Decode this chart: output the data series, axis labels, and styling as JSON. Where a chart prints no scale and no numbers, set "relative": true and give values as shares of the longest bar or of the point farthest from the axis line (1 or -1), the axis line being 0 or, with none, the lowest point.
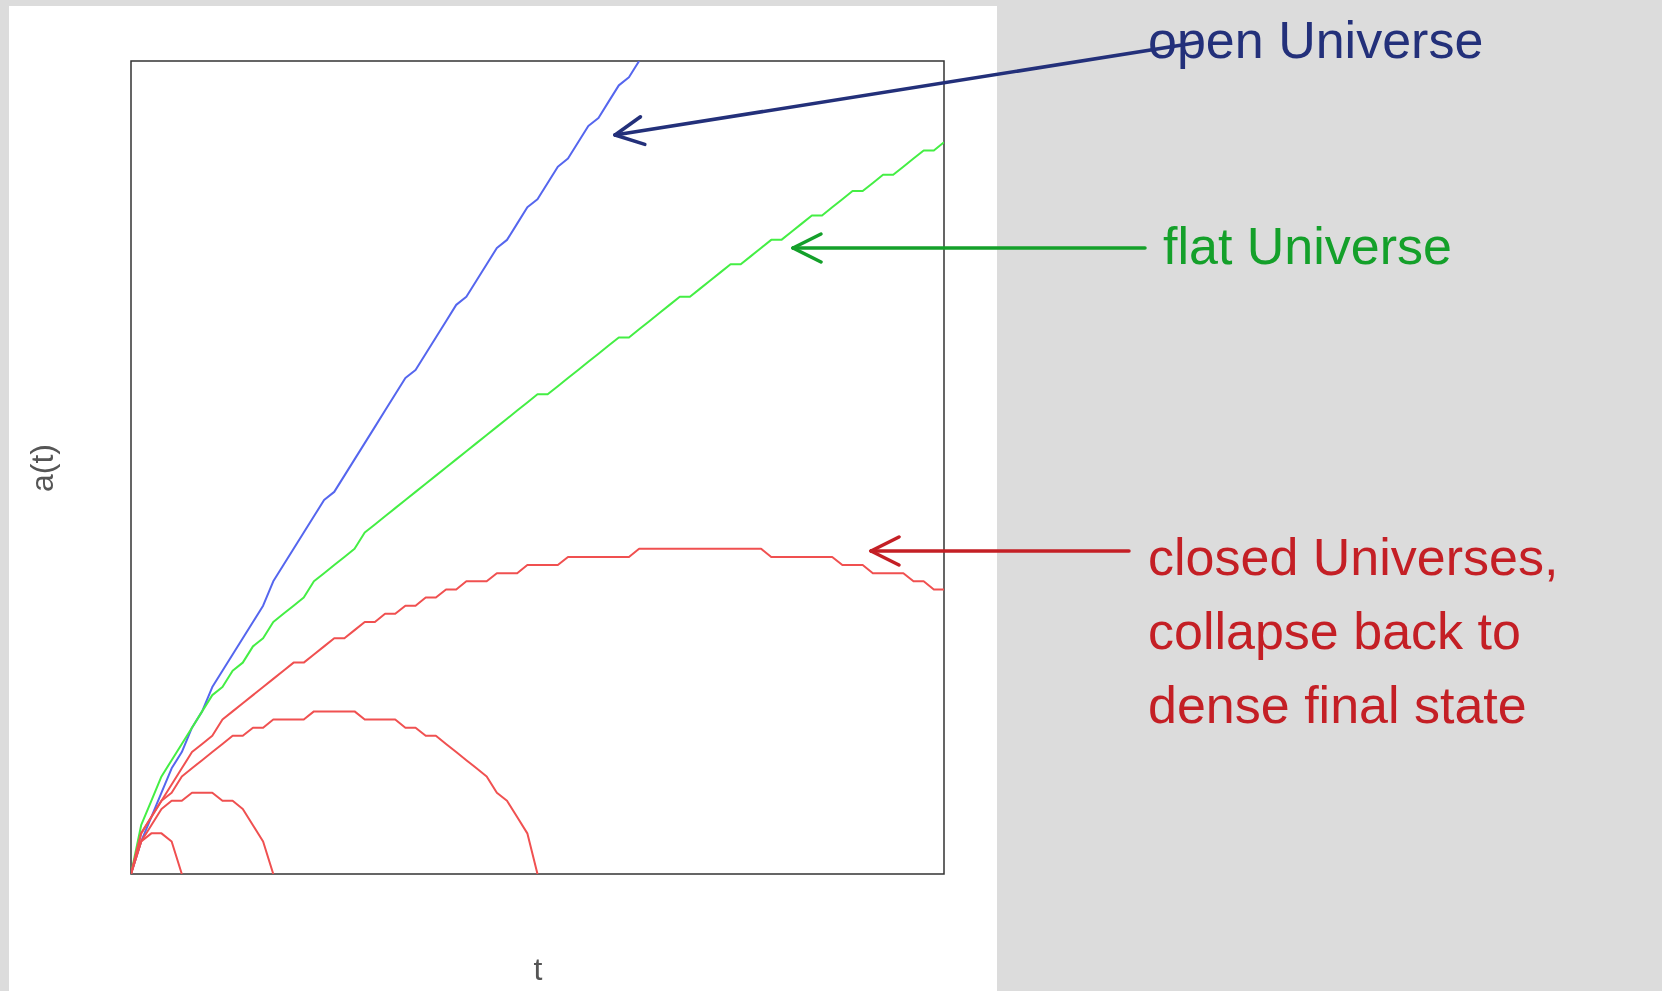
{
  "chart_data": {
    "type": "line",
    "relative": true,
    "xlabel": "t",
    "ylabel": "a(t)",
    "categories": [
      null,
      null,
      null,
      null,
      null,
      null,
      null,
      null,
      null,
      null,
      null,
      null,
      null,
      null,
      null,
      null,
      null,
      null,
      null,
      null,
      null,
      null,
      null,
      null,
      null,
      null,
      null,
      null,
      null,
      null,
      null,
      null,
      null,
      null,
      null,
      null,
      null,
      null,
      null,
      null,
      null,
      null,
      null,
      null,
      null,
      null,
      null,
      null,
      null,
      null,
      null,
      null,
      null,
      null,
      null,
      null,
      null,
      null,
      null,
      null,
      null,
      null,
      null,
      null,
      null,
      null,
      null,
      null,
      null,
      null,
      null,
      null,
      null,
      null,
      null,
      null,
      null,
      null,
      null,
      null,
      null
    ],
    "series": [
      {
        "color": "#5566ee",
        "values": [
          0,
          0.04,
          0.07,
          0.1,
          0.13,
          0.15,
          0.18,
          0.2,
          0.23,
          0.25,
          0.27,
          0.29,
          0.31,
          0.33,
          0.36,
          0.38,
          0.4,
          0.42,
          0.44,
          0.46,
          0.47,
          0.49,
          0.51,
          0.53,
          0.55,
          0.57,
          0.59,
          0.61,
          0.62,
          0.64,
          0.66,
          0.68,
          0.7,
          0.71,
          0.73,
          0.75,
          0.77,
          0.78,
          0.8,
          0.82,
          0.83,
          0.85,
          0.87,
          0.88,
          0.9,
          0.92,
          0.93,
          0.95,
          0.97,
          0.98,
          1,
          null,
          null,
          null,
          null,
          null,
          null,
          null,
          null,
          null,
          null,
          null,
          null,
          null,
          null,
          null,
          null,
          null,
          null,
          null,
          null,
          null,
          null,
          null,
          null,
          null,
          null,
          null,
          null,
          null,
          null
        ]
      },
      {
        "color": "#44ee44",
        "values": [
          0,
          0.06,
          0.09,
          0.12,
          0.14,
          0.16,
          0.18,
          0.2,
          0.22,
          0.23,
          0.25,
          0.26,
          0.28,
          0.29,
          0.31,
          0.32,
          0.33,
          0.34,
          0.36,
          0.37,
          0.38,
          0.39,
          0.4,
          0.42,
          0.43,
          0.44,
          0.45,
          0.46,
          0.47,
          0.48,
          0.49,
          0.5,
          0.51,
          0.52,
          0.53,
          0.54,
          0.55,
          0.56,
          0.57,
          0.58,
          0.59,
          0.59,
          0.6,
          0.61,
          0.62,
          0.63,
          0.64,
          0.65,
          0.66,
          0.66,
          0.67,
          0.68,
          0.69,
          0.7,
          0.71,
          0.71,
          0.72,
          0.73,
          0.74,
          0.75,
          0.75,
          0.76,
          0.77,
          0.78,
          0.78,
          0.79,
          0.8,
          0.81,
          0.81,
          0.82,
          0.83,
          0.84,
          0.84,
          0.85,
          0.86,
          0.86,
          0.87,
          0.88,
          0.89,
          0.89,
          0.9
        ]
      },
      {
        "color": "#f05050",
        "values": [
          0,
          0.05,
          0.07,
          0.09,
          0.11,
          0.13,
          0.15,
          0.16,
          0.17,
          0.19,
          0.2,
          0.21,
          0.22,
          0.23,
          0.24,
          0.25,
          0.26,
          0.26,
          0.27,
          0.28,
          0.29,
          0.29,
          0.3,
          0.31,
          0.31,
          0.32,
          0.32,
          0.33,
          0.33,
          0.34,
          0.34,
          0.35,
          0.35,
          0.36,
          0.36,
          0.36,
          0.37,
          0.37,
          0.37,
          0.38,
          0.38,
          0.38,
          0.38,
          0.39,
          0.39,
          0.39,
          0.39,
          0.39,
          0.39,
          0.39,
          0.4,
          0.4,
          0.4,
          0.4,
          0.4,
          0.4,
          0.4,
          0.4,
          0.4,
          0.4,
          0.4,
          0.4,
          0.4,
          0.39,
          0.39,
          0.39,
          0.39,
          0.39,
          0.39,
          0.39,
          0.38,
          0.38,
          0.38,
          0.37,
          0.37,
          0.37,
          0.37,
          0.36,
          0.36,
          0.35,
          0.35
        ]
      },
      {
        "color": "#f05151",
        "values": [
          0,
          0.05,
          0.07,
          0.09,
          0.1,
          0.12,
          0.13,
          0.14,
          0.15,
          0.16,
          0.17,
          0.17,
          0.18,
          0.18,
          0.19,
          0.19,
          0.19,
          0.19,
          0.2,
          0.2,
          0.2,
          0.2,
          0.2,
          0.19,
          0.19,
          0.19,
          0.19,
          0.18,
          0.18,
          0.17,
          0.17,
          0.16,
          0.15,
          0.14,
          0.13,
          0.12,
          0.1,
          0.09,
          0.07,
          0.05,
          0,
          null,
          null,
          null,
          null,
          null,
          null,
          null,
          null,
          null,
          null,
          null,
          null,
          null,
          null,
          null,
          null,
          null,
          null,
          null,
          null,
          null,
          null,
          null,
          null,
          null,
          null,
          null,
          null,
          null,
          null,
          null,
          null,
          null,
          null,
          null,
          null,
          null,
          null,
          null,
          null
        ]
      },
      {
        "color": "#ef5050",
        "values": [
          0,
          0.04,
          0.06,
          0.08,
          0.09,
          0.09,
          0.1,
          0.1,
          0.1,
          0.09,
          0.09,
          0.08,
          0.06,
          0.04,
          0,
          null,
          null,
          null,
          null,
          null,
          null,
          null,
          null,
          null,
          null,
          null,
          null,
          null,
          null,
          null,
          null,
          null,
          null,
          null,
          null,
          null,
          null,
          null,
          null,
          null,
          null,
          null,
          null,
          null,
          null,
          null,
          null,
          null,
          null,
          null,
          null,
          null,
          null,
          null,
          null,
          null,
          null,
          null,
          null,
          null,
          null,
          null,
          null,
          null,
          null,
          null,
          null,
          null,
          null,
          null,
          null,
          null,
          null,
          null,
          null,
          null,
          null,
          null,
          null,
          null,
          null
        ]
      },
      {
        "color": "#f04f50",
        "values": [
          0,
          0.04,
          0.05,
          0.05,
          0.04,
          0,
          null,
          null,
          null,
          null,
          null,
          null,
          null,
          null,
          null,
          null,
          null,
          null,
          null,
          null,
          null,
          null,
          null,
          null,
          null,
          null,
          null,
          null,
          null,
          null,
          null,
          null,
          null,
          null,
          null,
          null,
          null,
          null,
          null,
          null,
          null,
          null,
          null,
          null,
          null,
          null,
          null,
          null,
          null,
          null,
          null,
          null,
          null,
          null,
          null,
          null,
          null,
          null,
          null,
          null,
          null,
          null,
          null,
          null,
          null,
          null,
          null,
          null,
          null,
          null,
          null,
          null,
          null,
          null,
          null,
          null,
          null,
          null,
          null,
          null,
          null
        ]
      }
    ],
    "annotations": [
      "open Universe",
      "flat Universe",
      "closed Universes, collapse back to dense final state"
    ]
  }
}
